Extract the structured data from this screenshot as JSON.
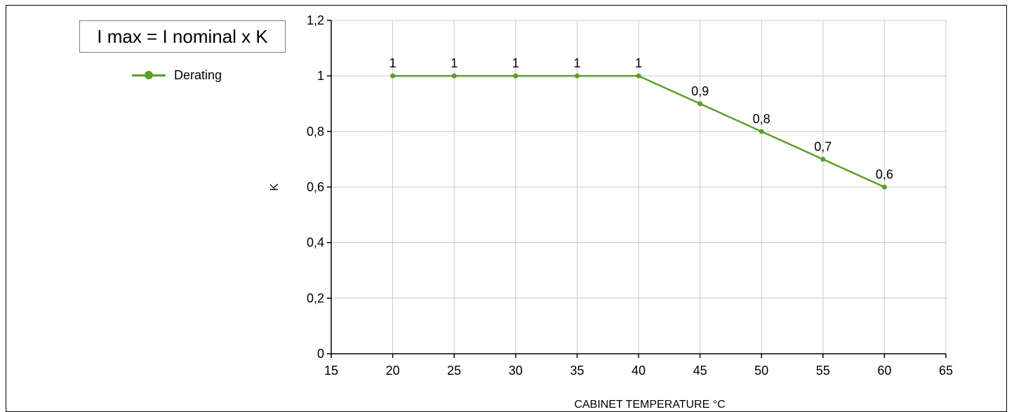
{
  "formula": "I max = I nominal x K",
  "chart_data": {
    "type": "line",
    "x": [
      20,
      25,
      30,
      35,
      40,
      45,
      50,
      55,
      60
    ],
    "series": [
      {
        "name": "Derating",
        "values": [
          1,
          1,
          1,
          1,
          1,
          0.9,
          0.8,
          0.7,
          0.6
        ],
        "labels": [
          "1",
          "1",
          "1",
          "1",
          "1",
          "0,9",
          "0,8",
          "0,7",
          "0,6"
        ],
        "color": "#5b9e2a"
      }
    ],
    "xlabel": "CABINET TEMPERATURE °C",
    "ylabel": "K",
    "xlim": [
      15,
      65
    ],
    "ylim": [
      0,
      1.2
    ],
    "xticks": [
      15,
      20,
      25,
      30,
      35,
      40,
      45,
      50,
      55,
      60,
      65
    ],
    "xtick_labels": [
      "15",
      "20",
      "25",
      "30",
      "35",
      "40",
      "45",
      "50",
      "55",
      "60",
      "65"
    ],
    "yticks": [
      0,
      0.2,
      0.4,
      0.6,
      0.8,
      1,
      1.2
    ],
    "ytick_labels": [
      "0",
      "0,2",
      "0,4",
      "0,6",
      "0,8",
      "1",
      "1,2"
    ],
    "grid": true,
    "legend_position": "top-left"
  }
}
